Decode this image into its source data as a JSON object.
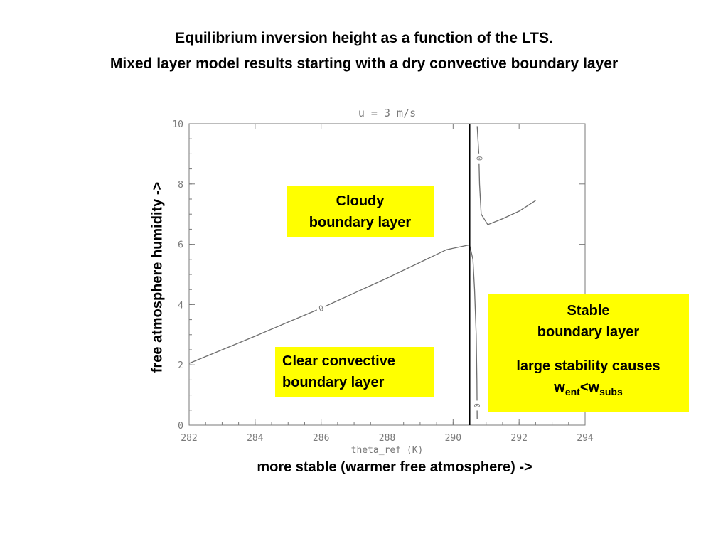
{
  "titles": {
    "line1": "Equilibrium inversion height as a function of the LTS.",
    "line2": "Mixed layer model results starting with a dry convective boundary layer"
  },
  "axis_labels": {
    "y": "free atmosphere humidity   ->",
    "x": "more stable (warmer free atmosphere) ->"
  },
  "boxes": {
    "cloudy": {
      "line1": "Cloudy",
      "line2": "boundary layer"
    },
    "clear": {
      "line1": "Clear convective",
      "line2": "boundary layer"
    },
    "stable": {
      "line1": "Stable",
      "line2": "boundary layer",
      "line3": "large stability causes",
      "w_ent_base": "w",
      "w_ent_sub": "ent",
      "lt": "<",
      "w_subs_base": "w",
      "w_subs_sub": "subs"
    },
    "fill_color": "#ffff00"
  },
  "chart_data": {
    "type": "line",
    "title": "u = 3 m/s",
    "xlabel": "theta_ref (K)",
    "xlim": [
      282,
      294
    ],
    "ylim": [
      0,
      10
    ],
    "x_ticks": [
      282,
      284,
      286,
      288,
      290,
      292,
      294
    ],
    "y_ticks": [
      0,
      2,
      4,
      6,
      8,
      10
    ],
    "grid": false,
    "contour_label": "0",
    "vertical_line_x": 290.5,
    "series": [
      {
        "values": [
          [
            282.0,
            2.05
          ],
          [
            283.0,
            2.5
          ],
          [
            284.0,
            2.95
          ],
          [
            285.0,
            3.42
          ],
          [
            286.0,
            3.88
          ],
          [
            287.0,
            4.38
          ],
          [
            288.0,
            4.88
          ],
          [
            289.0,
            5.4
          ],
          [
            289.8,
            5.82
          ],
          [
            290.5,
            5.98
          ]
        ]
      },
      {
        "values": [
          [
            290.5,
            5.98
          ],
          [
            290.6,
            5.5
          ],
          [
            290.65,
            4.5
          ],
          [
            290.7,
            3.0
          ],
          [
            290.72,
            1.5
          ],
          [
            290.73,
            0.2
          ]
        ]
      },
      {
        "values": [
          [
            290.73,
            9.92
          ],
          [
            290.78,
            9.0
          ],
          [
            290.8,
            8.0
          ],
          [
            290.85,
            7.0
          ],
          [
            291.05,
            6.65
          ],
          [
            291.5,
            6.85
          ],
          [
            292.0,
            7.1
          ],
          [
            292.5,
            7.45
          ]
        ]
      }
    ]
  }
}
